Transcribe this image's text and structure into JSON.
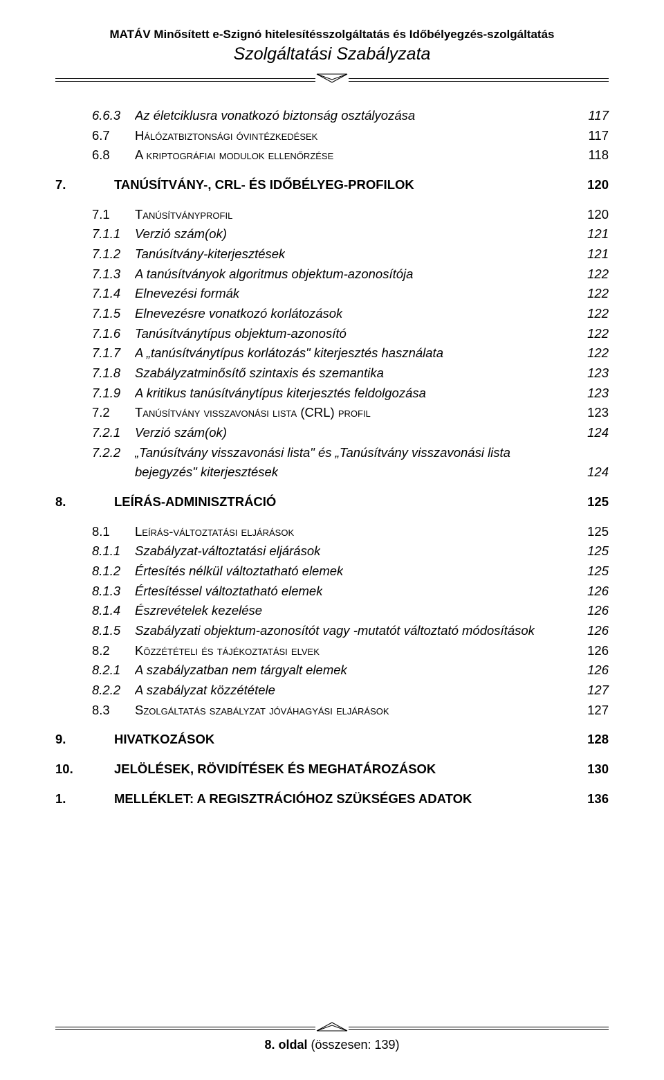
{
  "header": {
    "line1": "MATÁV Minősített e-Szignó hitelesítésszolgáltatás és Időbélyegzés-szolgáltatás",
    "line2": "Szolgáltatási Szabályzata"
  },
  "footer": {
    "page_label": "8. oldal",
    "total_label": " (összesen: 139)"
  },
  "toc": [
    {
      "level": 2,
      "num": "6.6.3",
      "title": "Az életciklusra vonatkozó biztonság osztályozása",
      "page": "117"
    },
    {
      "level": 1,
      "num": "6.7",
      "title": "Hálózatbiztonsági óvintézkedések",
      "page": "117",
      "smallcaps": true
    },
    {
      "level": 1,
      "num": "6.8",
      "title": "A kriptográfiai modulok ellenőrzése",
      "page": "118",
      "smallcaps": true
    },
    {
      "level": 0,
      "num": "7.",
      "title": "TANÚSÍTVÁNY-, CRL- ÉS IDŐBÉLYEG-PROFILOK",
      "page": "120",
      "bold": true,
      "gap": true
    },
    {
      "level": 1,
      "num": "7.1",
      "title": "Tanúsítványprofil",
      "page": "120",
      "smallcaps": true,
      "gap": true
    },
    {
      "level": 2,
      "num": "7.1.1",
      "title": "Verzió szám(ok)",
      "page": "121"
    },
    {
      "level": 2,
      "num": "7.1.2",
      "title": "Tanúsítvány-kiterjesztések",
      "page": "121"
    },
    {
      "level": 2,
      "num": "7.1.3",
      "title": "A tanúsítványok algoritmus objektum-azonosítója",
      "page": "122"
    },
    {
      "level": 2,
      "num": "7.1.4",
      "title": "Elnevezési formák",
      "page": "122"
    },
    {
      "level": 2,
      "num": "7.1.5",
      "title": "Elnevezésre vonatkozó korlátozások",
      "page": "122"
    },
    {
      "level": 2,
      "num": "7.1.6",
      "title": "Tanúsítványtípus objektum-azonosító",
      "page": "122"
    },
    {
      "level": 2,
      "num": "7.1.7",
      "title": "A „tanúsítványtípus korlátozás\" kiterjesztés használata",
      "page": "122"
    },
    {
      "level": 2,
      "num": "7.1.8",
      "title": "Szabályzatminősítő szintaxis és szemantika",
      "page": "123"
    },
    {
      "level": 2,
      "num": "7.1.9",
      "title": "A kritikus tanúsítványtípus kiterjesztés feldolgozása",
      "page": "123"
    },
    {
      "level": 1,
      "num": "7.2",
      "title": "Tanúsítvány visszavonási lista (CRL) profil",
      "page": "123",
      "smallcaps": true
    },
    {
      "level": 2,
      "num": "7.2.1",
      "title": "Verzió szám(ok)",
      "page": "124"
    },
    {
      "level": 2,
      "num": "7.2.2",
      "title": "„Tanúsítvány visszavonási lista\" és „Tanúsítvány visszavonási lista bejegyzés\" kiterjesztések",
      "page": "124",
      "multiline": true
    },
    {
      "level": 0,
      "num": "8.",
      "title": "LEÍRÁS-ADMINISZTRÁCIÓ",
      "page": "125",
      "bold": true,
      "gap": true
    },
    {
      "level": 1,
      "num": "8.1",
      "title": "Leírás-változtatási eljárások",
      "page": "125",
      "smallcaps": true,
      "gap": true
    },
    {
      "level": 2,
      "num": "8.1.1",
      "title": "Szabályzat-változtatási eljárások",
      "page": "125"
    },
    {
      "level": 2,
      "num": "8.1.2",
      "title": "Értesítés nélkül változtatható elemek",
      "page": "125"
    },
    {
      "level": 2,
      "num": "8.1.3",
      "title": "Értesítéssel változtatható elemek",
      "page": "126"
    },
    {
      "level": 2,
      "num": "8.1.4",
      "title": "Észrevételek kezelése",
      "page": "126"
    },
    {
      "level": 2,
      "num": "8.1.5",
      "title": "Szabályzati objektum-azonosítót vagy -mutatót változtató módosítások",
      "page": "126"
    },
    {
      "level": 1,
      "num": "8.2",
      "title": "Közzétételi és tájékoztatási elvek",
      "page": "126",
      "smallcaps": true
    },
    {
      "level": 2,
      "num": "8.2.1",
      "title": "A szabályzatban nem tárgyalt elemek",
      "page": "126"
    },
    {
      "level": 2,
      "num": "8.2.2",
      "title": "A szabályzat közzététele",
      "page": "127"
    },
    {
      "level": 1,
      "num": "8.3",
      "title": "Szolgáltatás szabályzat jóváhagyási eljárások",
      "page": "127",
      "smallcaps": true
    },
    {
      "level": 0,
      "num": "9.",
      "title": "HIVATKOZÁSOK",
      "page": "128",
      "bold": true,
      "gap": true
    },
    {
      "level": 0,
      "num": "10.",
      "title": "JELÖLÉSEK, RÖVIDÍTÉSEK ÉS MEGHATÁROZÁSOK",
      "page": "130",
      "bold": true,
      "gap": true
    },
    {
      "level": 0,
      "num": "1.",
      "title": "MELLÉKLET: A REGISZTRÁCIÓHOZ SZÜKSÉGES ADATOK",
      "page": "136",
      "bold": true,
      "gap": true
    }
  ]
}
